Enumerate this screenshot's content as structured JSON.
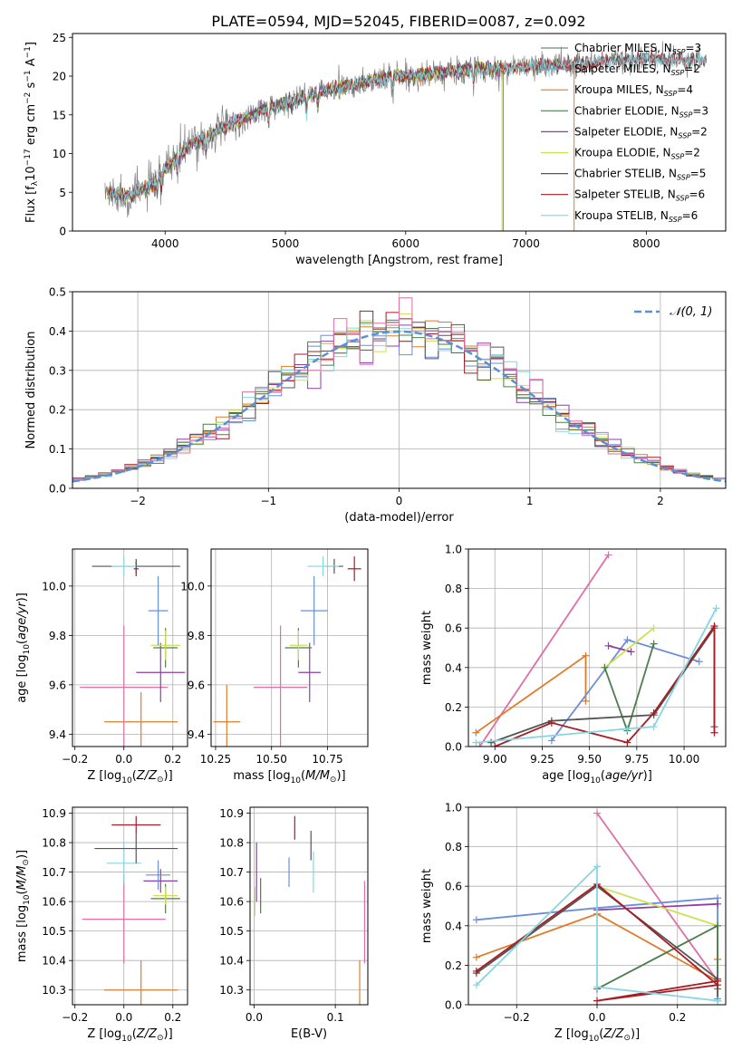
{
  "figure": {
    "title": "PLATE=0594, MJD=52045, FIBERID=0087, z=0.092"
  },
  "chart_data": [
    {
      "id": "spectrum",
      "type": "line",
      "xlabel": "wavelength [Angstrom, rest frame]",
      "ylabel_parts": [
        "Flux [f",
        "λ",
        "10",
        "−17",
        " erg cm",
        "−2",
        " s",
        "−1",
        " A",
        "−1",
        "]"
      ],
      "xlim": [
        3230,
        8660
      ],
      "ylim": [
        0,
        25.5
      ],
      "xticks": [
        4000,
        5000,
        6000,
        7000,
        8000
      ],
      "yticks": [
        0,
        5,
        10,
        15,
        20,
        25
      ],
      "legend_position": "upper right",
      "grid": false,
      "series": [
        {
          "name": "Chabrier MILES, N_SSP=3",
          "label": "Chabrier MILES, N",
          "sub": "SSP",
          "n": "=3",
          "color": "#6b8e7f",
          "wave_range": [
            3520,
            7400
          ]
        },
        {
          "name": "Salpeter MILES, N_SSP=2",
          "label": "Salpeter MILES, N",
          "sub": "SSP",
          "n": "=2",
          "color": "#8d9ec4",
          "wave_range": [
            3520,
            7400
          ]
        },
        {
          "name": "Kroupa MILES, N_SSP=4",
          "label": "Kroupa MILES, N",
          "sub": "SSP",
          "n": "=4",
          "color": "#e07b2a",
          "wave_range": [
            3520,
            7400
          ]
        },
        {
          "name": "Chabrier ELODIE, N_SSP=3",
          "label": "Chabrier ELODIE, N",
          "sub": "SSP",
          "n": "=3",
          "color": "#4d7d4d",
          "wave_range": [
            3520,
            6800
          ]
        },
        {
          "name": "Salpeter ELODIE, N_SSP=2",
          "label": "Salpeter ELODIE, N",
          "sub": "SSP",
          "n": "=2",
          "color": "#8f3ea8",
          "wave_range": [
            3520,
            6800
          ]
        },
        {
          "name": "Kroupa ELODIE, N_SSP=2",
          "label": "Kroupa ELODIE, N",
          "sub": "SSP",
          "n": "=2",
          "color": "#cde04e",
          "wave_range": [
            3520,
            6800
          ]
        },
        {
          "name": "Chabrier STELIB, N_SSP=5",
          "label": "Chabrier STELIB, N",
          "sub": "SSP",
          "n": "=5",
          "color": "#555555",
          "wave_range": [
            3520,
            8500
          ]
        },
        {
          "name": "Salpeter STELIB, N_SSP=6",
          "label": "Salpeter STELIB, N",
          "sub": "SSP",
          "n": "=6",
          "color": "#a81c24",
          "wave_range": [
            3520,
            8500
          ]
        },
        {
          "name": "Kroupa STELIB, N_SSP=6",
          "label": "Kroupa STELIB, N",
          "sub": "SSP",
          "n": "=6",
          "color": "#86d6e2",
          "wave_range": [
            3520,
            8500
          ]
        }
      ],
      "continuum": [
        [
          3500,
          5
        ],
        [
          3700,
          4.5
        ],
        [
          3900,
          6
        ],
        [
          4000,
          8
        ],
        [
          4200,
          11
        ],
        [
          4500,
          13.5
        ],
        [
          4800,
          15.5
        ],
        [
          5000,
          16.5
        ],
        [
          5300,
          18
        ],
        [
          5600,
          19
        ],
        [
          5900,
          20
        ],
        [
          6200,
          20.2
        ],
        [
          6500,
          20.8
        ],
        [
          6800,
          21
        ],
        [
          7100,
          21.3
        ],
        [
          7400,
          21.5
        ],
        [
          7700,
          22
        ],
        [
          8000,
          22.2
        ],
        [
          8400,
          22
        ]
      ],
      "data_color": "#808080"
    },
    {
      "id": "residuals",
      "type": "step-histogram",
      "xlabel": "(data-model)/error",
      "ylabel": "Normed distribution",
      "xlim": [
        -2.5,
        2.5
      ],
      "ylim": [
        0,
        0.5
      ],
      "xticks": [
        -2,
        -1,
        0,
        1,
        2
      ],
      "yticks": [
        0.0,
        0.1,
        0.2,
        0.3,
        0.4,
        0.5
      ],
      "grid": true,
      "legend": {
        "label": "𝒩(0, 1)",
        "position": "upper right"
      },
      "reference_curve": {
        "name": "N(0,1)",
        "color": "#5b8fd8",
        "style": "dashed",
        "mean": 0,
        "sigma": 1
      },
      "bin_width": 0.1,
      "series_colors": [
        "#e07b2a",
        "#6b8ed8",
        "#8f3ea8",
        "#cde04e",
        "#555555",
        "#a81c24",
        "#86d6e2",
        "#4d7d4d",
        "#e06ea8"
      ]
    },
    {
      "id": "age-vs-Z",
      "type": "errorbar",
      "xlabel": "Z [log10(Z/Z⊙)]",
      "ylabel": "age [log10(age/yr)]",
      "xlim": [
        -0.21,
        0.26
      ],
      "ylim": [
        9.35,
        10.15
      ],
      "xticks": [
        -0.2,
        0.0,
        0.2
      ],
      "yticks": [
        9.4,
        9.6,
        9.8,
        10.0
      ],
      "grid": true,
      "points": [
        {
          "color": "#e07b2a",
          "x": 0.07,
          "xerr": 0.15,
          "y": 9.45,
          "yerr": 0.12
        },
        {
          "color": "#e06ea8",
          "x": 0.0,
          "xerr": 0.18,
          "y": 9.59,
          "yerr": 0.25
        },
        {
          "color": "#8f3ea8",
          "x": 0.15,
          "xerr": 0.1,
          "y": 9.65,
          "yerr": 0.12
        },
        {
          "color": "#4d7d4d",
          "x": 0.17,
          "xerr": 0.05,
          "y": 9.75,
          "yerr": 0.08
        },
        {
          "color": "#cde04e",
          "x": 0.17,
          "xerr": 0.06,
          "y": 9.76,
          "yerr": 0.06
        },
        {
          "color": "#6b8ed8",
          "x": 0.14,
          "xerr": 0.04,
          "y": 9.9,
          "yerr": 0.14
        },
        {
          "color": "#a81c24",
          "x": 0.05,
          "xerr": 0.01,
          "y": 10.07,
          "yerr": 0.03
        },
        {
          "color": "#555555",
          "x": 0.05,
          "xerr": 0.18,
          "y": 10.08,
          "yerr": 0.03
        },
        {
          "color": "#86d6e2",
          "x": 0.0,
          "xerr": 0.05,
          "y": 10.08,
          "yerr": 0.04
        }
      ]
    },
    {
      "id": "age-vs-mass",
      "type": "errorbar",
      "xlabel": "mass [log10(M/M⊙)]",
      "xlim": [
        10.23,
        10.93
      ],
      "ylim": [
        9.35,
        10.15
      ],
      "xticks": [
        10.25,
        10.5,
        10.75
      ],
      "yticks": [
        9.4,
        9.6,
        9.8,
        10.0
      ],
      "grid": true,
      "points": [
        {
          "color": "#e07b2a",
          "x": 10.3,
          "xerr": 0.06,
          "y": 9.45,
          "yerr": 0.15
        },
        {
          "color": "#e06ea8",
          "x": 10.54,
          "xerr": 0.12,
          "y": 9.59,
          "yerr": 0.25
        },
        {
          "color": "#8f3ea8",
          "x": 10.67,
          "xerr": 0.05,
          "y": 9.65,
          "yerr": 0.12
        },
        {
          "color": "#4d7d4d",
          "x": 10.62,
          "xerr": 0.06,
          "y": 9.75,
          "yerr": 0.08
        },
        {
          "color": "#cde04e",
          "x": 10.62,
          "xerr": 0.04,
          "y": 9.76,
          "yerr": 0.06
        },
        {
          "color": "#6b8ed8",
          "x": 10.69,
          "xerr": 0.06,
          "y": 9.9,
          "yerr": 0.14
        },
        {
          "color": "#a81c24",
          "x": 10.87,
          "xerr": 0.03,
          "y": 10.07,
          "yerr": 0.05
        },
        {
          "color": "#555555",
          "x": 10.78,
          "xerr": 0.04,
          "y": 10.08,
          "yerr": 0.03
        },
        {
          "color": "#86d6e2",
          "x": 10.73,
          "xerr": 0.07,
          "y": 10.08,
          "yerr": 0.04
        }
      ]
    },
    {
      "id": "weight-vs-age",
      "type": "line",
      "xlabel": "age [log10(age/yr)]",
      "ylabel": "mass weight",
      "xlim": [
        8.86,
        10.22
      ],
      "ylim": [
        0,
        1
      ],
      "xticks": [
        9.0,
        9.25,
        9.5,
        9.75,
        10.0
      ],
      "yticks": [
        0.0,
        0.2,
        0.4,
        0.6,
        0.8,
        1.0
      ],
      "grid": true,
      "series": [
        {
          "color": "#e06ea8",
          "x": [
            8.92,
            9.6
          ],
          "y": [
            0.0,
            0.97
          ]
        },
        {
          "color": "#e07b2a",
          "x": [
            8.9,
            9.48,
            9.48
          ],
          "y": [
            0.07,
            0.46,
            0.23
          ]
        },
        {
          "color": "#6b8ed8",
          "x": [
            9.3,
            9.7,
            10.08
          ],
          "y": [
            0.03,
            0.54,
            0.43
          ]
        },
        {
          "color": "#8f3ea8",
          "x": [
            9.6,
            9.72
          ],
          "y": [
            0.51,
            0.48
          ]
        },
        {
          "color": "#cde04e",
          "x": [
            9.58,
            9.84
          ],
          "y": [
            0.4,
            0.6
          ]
        },
        {
          "color": "#4d7d4d",
          "x": [
            9.58,
            9.7,
            9.84
          ],
          "y": [
            0.4,
            0.08,
            0.52
          ]
        },
        {
          "color": "#555555",
          "x": [
            8.98,
            9.3,
            9.84,
            10.16,
            10.16
          ],
          "y": [
            0.02,
            0.13,
            0.16,
            0.6,
            0.1
          ]
        },
        {
          "color": "#a81c24",
          "x": [
            9.0,
            9.3,
            9.7,
            9.84,
            10.16,
            10.16
          ],
          "y": [
            0.0,
            0.12,
            0.02,
            0.17,
            0.61,
            0.07
          ]
        },
        {
          "color": "#86d6e2",
          "x": [
            8.9,
            9.7,
            9.84,
            10.17
          ],
          "y": [
            0.02,
            0.09,
            0.1,
            0.7
          ]
        }
      ]
    },
    {
      "id": "mass-vs-Z",
      "type": "errorbar",
      "xlabel": "Z [log10(Z/Z⊙)]",
      "ylabel": "mass [log10(M/M⊙)]",
      "xlim": [
        -0.21,
        0.26
      ],
      "ylim": [
        10.25,
        10.92
      ],
      "xticks": [
        -0.2,
        0.0,
        0.2
      ],
      "yticks": [
        10.3,
        10.4,
        10.5,
        10.6,
        10.7,
        10.8,
        10.9
      ],
      "grid": true,
      "points": [
        {
          "color": "#e07b2a",
          "x": 0.07,
          "xerr": 0.15,
          "y": 10.3,
          "yerr": 0.1
        },
        {
          "color": "#e06ea8",
          "x": 0.0,
          "xerr": 0.17,
          "y": 10.54,
          "yerr": 0.15
        },
        {
          "color": "#8f3ea8",
          "x": 0.15,
          "xerr": 0.07,
          "y": 10.67,
          "yerr": 0.04
        },
        {
          "color": "#4d7d4d",
          "x": 0.17,
          "xerr": 0.06,
          "y": 10.61,
          "yerr": 0.05
        },
        {
          "color": "#cde04e",
          "x": 0.17,
          "xerr": 0.05,
          "y": 10.62,
          "yerr": 0.03
        },
        {
          "color": "#6b8ed8",
          "x": 0.14,
          "xerr": 0.05,
          "y": 10.69,
          "yerr": 0.05
        },
        {
          "color": "#86d6e2",
          "x": 0.0,
          "xerr": 0.07,
          "y": 10.73,
          "yerr": 0.07
        },
        {
          "color": "#555555",
          "x": 0.05,
          "xerr": 0.17,
          "y": 10.78,
          "yerr": 0.05
        },
        {
          "color": "#a81c24",
          "x": 0.05,
          "xerr": 0.1,
          "y": 10.86,
          "yerr": 0.03
        }
      ]
    },
    {
      "id": "mass-vs-EBV",
      "type": "errorbar",
      "xlabel": "E(B-V)",
      "xlim": [
        -0.005,
        0.14
      ],
      "ylim": [
        10.25,
        10.92
      ],
      "xticks": [
        0.0,
        0.1
      ],
      "yticks": [
        10.3,
        10.4,
        10.5,
        10.6,
        10.7,
        10.8,
        10.9
      ],
      "grid": true,
      "points": [
        {
          "color": "#e07b2a",
          "x": 0.13,
          "xerr": 0,
          "y": 10.3,
          "yerr": 0.1
        },
        {
          "color": "#e06ea8",
          "x": 0.136,
          "xerr": 0,
          "y": 10.53,
          "yerr": 0.14
        },
        {
          "color": "#8f3ea8",
          "x": 0.003,
          "xerr": 0,
          "y": 10.7,
          "yerr": 0.1
        },
        {
          "color": "#4d7d4d",
          "x": 0.008,
          "xerr": 0,
          "y": 10.62,
          "yerr": 0.06
        },
        {
          "color": "#cde04e",
          "x": 0.001,
          "xerr": 0,
          "y": 10.6,
          "yerr": 0.05
        },
        {
          "color": "#6b8ed8",
          "x": 0.043,
          "xerr": 0,
          "y": 10.7,
          "yerr": 0.05
        },
        {
          "color": "#86d6e2",
          "x": 0.073,
          "xerr": 0,
          "y": 10.7,
          "yerr": 0.07
        },
        {
          "color": "#555555",
          "x": 0.07,
          "xerr": 0,
          "y": 10.79,
          "yerr": 0.05
        },
        {
          "color": "#a81c24",
          "x": 0.05,
          "xerr": 0,
          "y": 10.85,
          "yerr": 0.04
        }
      ]
    },
    {
      "id": "weight-vs-Z",
      "type": "line",
      "xlabel": "Z [log10(Z/Z⊙)]",
      "ylabel": "mass weight",
      "xlim": [
        -0.32,
        0.32
      ],
      "ylim": [
        0,
        1
      ],
      "xticks": [
        -0.2,
        0.0,
        0.2
      ],
      "yticks": [
        0.0,
        0.2,
        0.4,
        0.6,
        0.8,
        1.0
      ],
      "grid": true,
      "series": [
        {
          "color": "#e06ea8",
          "x": [
            0.0,
            0.3
          ],
          "y": [
            0.97,
            0.12
          ]
        },
        {
          "color": "#e07b2a",
          "x": [
            -0.3,
            0.0,
            0.3,
            0.3
          ],
          "y": [
            0.24,
            0.46,
            0.12,
            0.23
          ]
        },
        {
          "color": "#6b8ed8",
          "x": [
            -0.3,
            0.0,
            0.3,
            0.3
          ],
          "y": [
            0.43,
            0.49,
            0.54,
            0.03
          ]
        },
        {
          "color": "#8f3ea8",
          "x": [
            0.0,
            0.3
          ],
          "y": [
            0.48,
            0.51
          ]
        },
        {
          "color": "#cde04e",
          "x": [
            0.0,
            0.3
          ],
          "y": [
            0.6,
            0.4
          ]
        },
        {
          "color": "#4d7d4d",
          "x": [
            0.0,
            0.3,
            0.3
          ],
          "y": [
            0.08,
            0.4,
            0.08
          ]
        },
        {
          "color": "#555555",
          "x": [
            -0.3,
            0.0,
            0.3,
            0.3
          ],
          "y": [
            0.16,
            0.6,
            0.13,
            0.02
          ]
        },
        {
          "color": "#a81c24",
          "x": [
            -0.3,
            0.0,
            0.3,
            0.0,
            0.3
          ],
          "y": [
            0.17,
            0.61,
            0.1,
            0.02,
            0.12
          ]
        },
        {
          "color": "#86d6e2",
          "x": [
            -0.3,
            0.0,
            0.0,
            0.3
          ],
          "y": [
            0.1,
            0.7,
            0.09,
            0.02
          ]
        }
      ]
    }
  ]
}
